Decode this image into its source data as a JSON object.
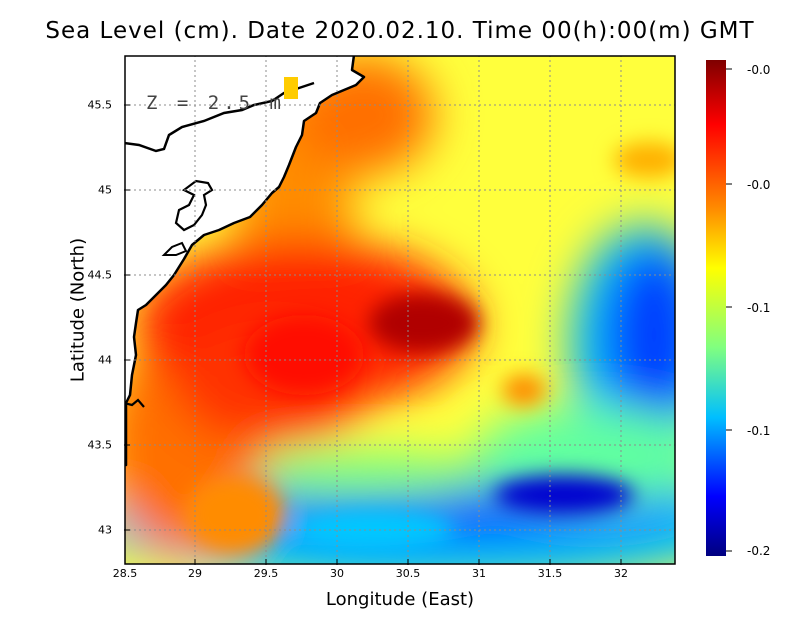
{
  "title": "Sea Level (cm). Date 2020.02.10. Time 00(h):00(m) GMT",
  "depth_label": "Z = 2.5 m",
  "x_axis": {
    "label": "Longitude (East)",
    "ticks": [
      "28.5",
      "29",
      "29.5",
      "30",
      "30.5",
      "31",
      "31.5",
      "32"
    ],
    "range": [
      28.5,
      32.4
    ]
  },
  "y_axis": {
    "label": "Latitude (North)",
    "ticks": [
      "45.5",
      "45",
      "44.5",
      "44",
      "43.5",
      "43"
    ],
    "range": [
      42.8,
      45.8
    ]
  },
  "colorbar": {
    "ticks": [
      "-0.0",
      "-0.0",
      "-0.1",
      "-0.1",
      "-0.2"
    ],
    "min": -0.2,
    "max": 0.0
  },
  "colors": {
    "land": "#ffffff",
    "coastline": "#000000",
    "scale": [
      "#00007f",
      "#0000ff",
      "#00bfff",
      "#80ff80",
      "#ffff00",
      "#ff8c00",
      "#ff0000",
      "#7f0000"
    ]
  }
}
